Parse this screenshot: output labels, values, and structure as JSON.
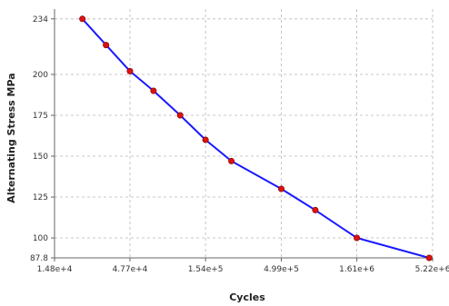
{
  "chart_data": {
    "type": "line",
    "xlabel": "Cycles",
    "ylabel": "Alternating Stress MPa",
    "x_scale": "log",
    "xlim": [
      14800,
      5220000
    ],
    "ylim": [
      87.8,
      240
    ],
    "grid": true,
    "x_ticks": [
      {
        "value": 14800,
        "label": "1.48e+4"
      },
      {
        "value": 47700,
        "label": "4.77e+4"
      },
      {
        "value": 154000,
        "label": "1.54e+5"
      },
      {
        "value": 499000,
        "label": "4.99e+5"
      },
      {
        "value": 1610000,
        "label": "1.61e+6"
      },
      {
        "value": 5220000,
        "label": "5.22e+6"
      }
    ],
    "y_ticks": [
      {
        "value": 234,
        "label": "234"
      },
      {
        "value": 200,
        "label": "200"
      },
      {
        "value": 175,
        "label": "175"
      },
      {
        "value": 150,
        "label": "150"
      },
      {
        "value": 125,
        "label": "125"
      },
      {
        "value": 100,
        "label": "100"
      },
      {
        "value": 87.8,
        "label": "87.8"
      }
    ],
    "series": [
      {
        "line_color": "#1a1aff",
        "marker_color": "#dd1111",
        "x": [
          22800,
          32900,
          47700,
          68700,
          104000,
          154000,
          230000,
          499000,
          846000,
          1610000,
          4950000
        ],
        "y": [
          234,
          218,
          202,
          190,
          175,
          160,
          147,
          130,
          117,
          100,
          87.8
        ]
      }
    ]
  }
}
